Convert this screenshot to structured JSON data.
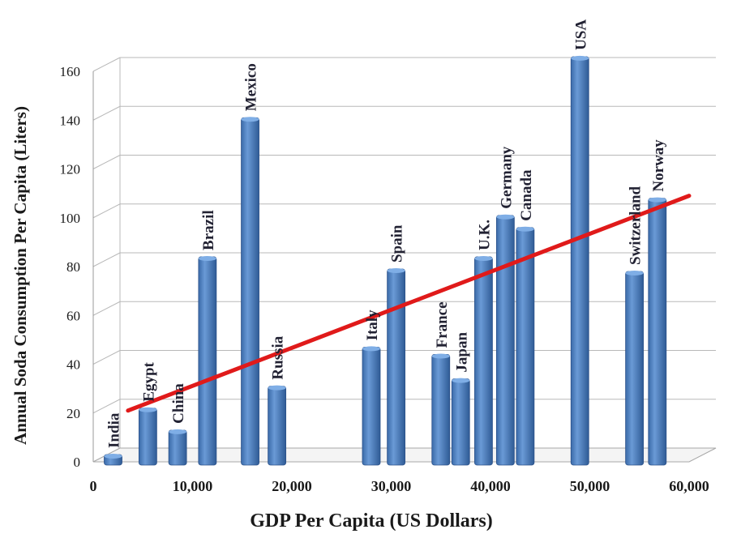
{
  "chart_data": {
    "type": "bar",
    "title": "",
    "xlabel": "GDP Per Capita (US Dollars)",
    "ylabel": "Annual Soda Consumption Per Capita (Liters)",
    "xlim": [
      0,
      60000
    ],
    "ylim": [
      0,
      160
    ],
    "xticks": [
      "0",
      "10,000",
      "20,000",
      "30,000",
      "40,000",
      "50,000",
      "60,000"
    ],
    "yticks": [
      "0",
      "20",
      "40",
      "60",
      "80",
      "100",
      "120",
      "140",
      "160"
    ],
    "grid": true,
    "bar_color": "#4a7ebb",
    "trend_color": "#e01a1a",
    "points": [
      {
        "country": "India",
        "x": 2000,
        "y": 3
      },
      {
        "country": "Egypt",
        "x": 5500,
        "y": 22
      },
      {
        "country": "China",
        "x": 8500,
        "y": 13
      },
      {
        "country": "Brazil",
        "x": 11500,
        "y": 84
      },
      {
        "country": "Mexico",
        "x": 15800,
        "y": 141
      },
      {
        "country": "Russia",
        "x": 18500,
        "y": 31
      },
      {
        "country": "Italy",
        "x": 28000,
        "y": 47
      },
      {
        "country": "Spain",
        "x": 30500,
        "y": 79
      },
      {
        "country": "France",
        "x": 35000,
        "y": 44
      },
      {
        "country": "Japan",
        "x": 37000,
        "y": 34
      },
      {
        "country": "U.K.",
        "x": 39300,
        "y": 84
      },
      {
        "country": "Germany",
        "x": 41500,
        "y": 101
      },
      {
        "country": "Canada",
        "x": 43500,
        "y": 96
      },
      {
        "country": "USA",
        "x": 49000,
        "y": 166
      },
      {
        "country": "Switzerland",
        "x": 54500,
        "y": 78
      },
      {
        "country": "Norway",
        "x": 56800,
        "y": 108
      }
    ],
    "trendline": {
      "x": [
        3500,
        60000
      ],
      "y": [
        21,
        109
      ]
    }
  }
}
